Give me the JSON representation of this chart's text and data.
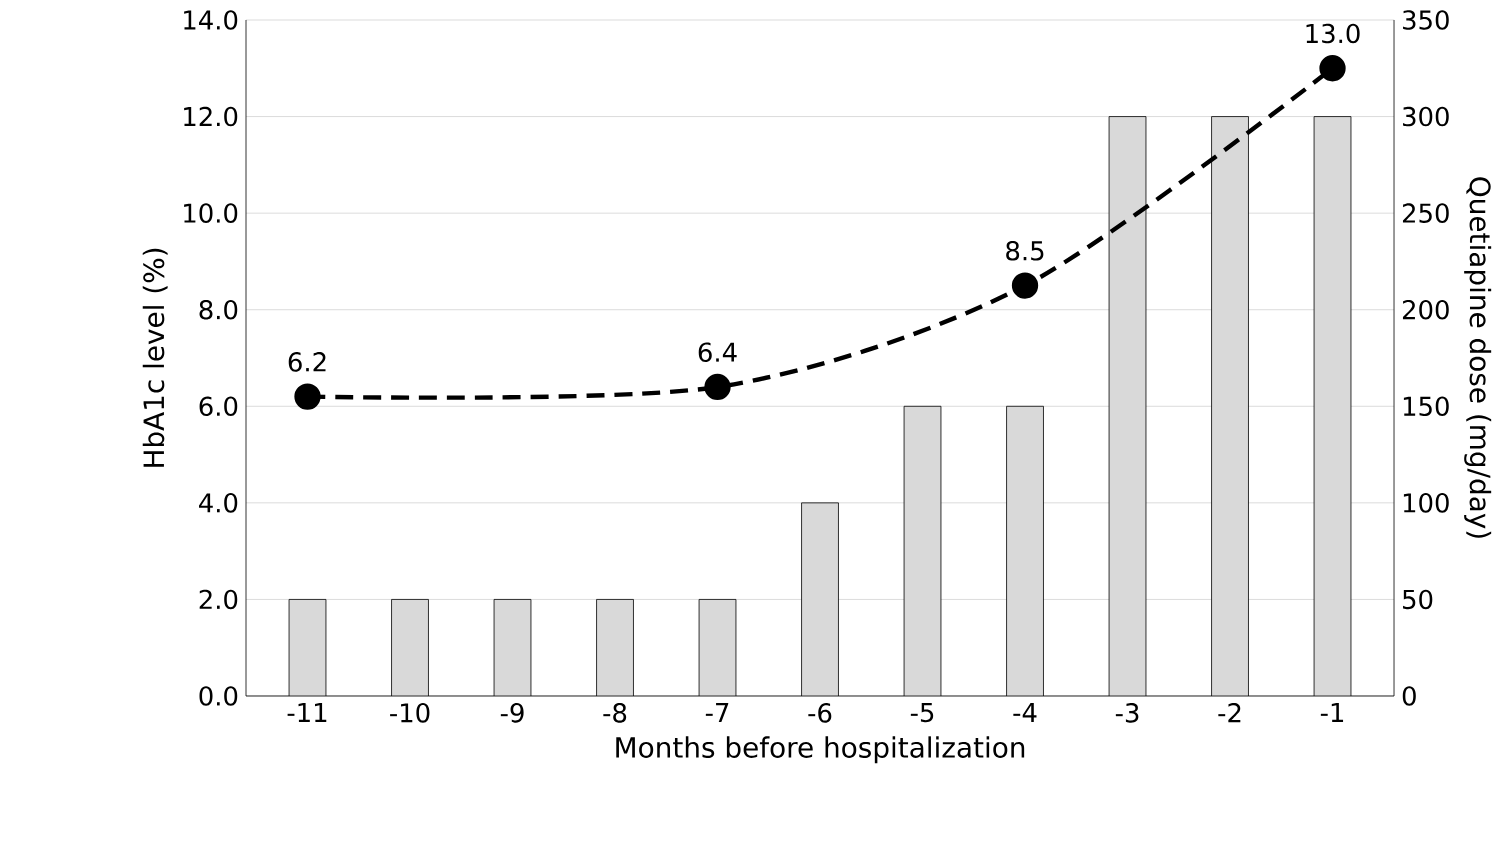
{
  "chart_data": {
    "type": "bar",
    "xlabel": "Months before hospitalization",
    "ylabel": "HbA1c level (%)",
    "y2label": "Quetiapine dose (mg/day)",
    "x": [
      -11,
      -10,
      -9,
      -8,
      -7,
      -6,
      -5,
      -4,
      -3,
      -2,
      -1
    ],
    "xlim": [
      -11.6,
      -0.4
    ],
    "xticks": [
      -11,
      -10,
      -9,
      -8,
      -7,
      -6,
      -5,
      -4,
      -3,
      -2,
      -1
    ],
    "ylim": [
      0,
      14
    ],
    "yticks": [
      {
        "value": 0,
        "label": "0.0"
      },
      {
        "value": 2,
        "label": "2.0"
      },
      {
        "value": 4,
        "label": "4.0"
      },
      {
        "value": 6,
        "label": "6.0"
      },
      {
        "value": 8,
        "label": "8.0"
      },
      {
        "value": 10,
        "label": "10.0"
      },
      {
        "value": 12,
        "label": "12.0"
      },
      {
        "value": 14,
        "label": "14.0"
      }
    ],
    "y2lim": [
      0,
      350
    ],
    "y2ticks": [
      0,
      50,
      100,
      150,
      200,
      250,
      300,
      350
    ],
    "grid": "y",
    "series": [
      {
        "axis": "y2",
        "color": "#d9d9d9",
        "values": [
          50,
          50,
          50,
          50,
          50,
          100,
          150,
          150,
          300,
          300,
          300
        ]
      },
      {
        "type": "line",
        "axis": "y",
        "x": [
          -11,
          -7,
          -4,
          -1
        ],
        "values": [
          6.2,
          6.4,
          8.5,
          13.0
        ],
        "color": "#000000",
        "marker": "circle",
        "line_style": "dashed",
        "value_labels": [
          "6.2",
          "6.4",
          "8.5",
          "13.0"
        ]
      }
    ]
  }
}
